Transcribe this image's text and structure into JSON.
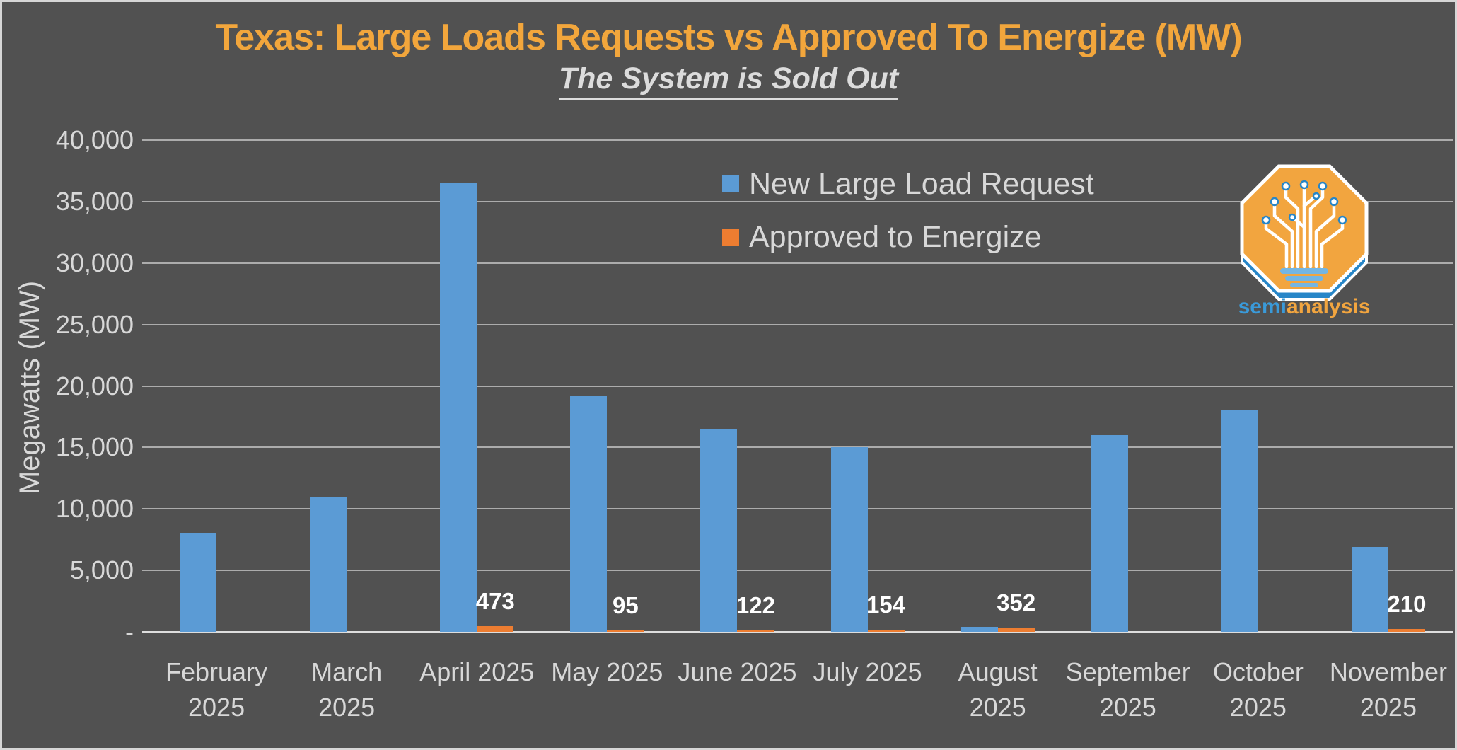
{
  "title": "Texas: Large Loads Requests vs Approved To Energize (MW)",
  "subtitle": "The System is Sold Out",
  "y_axis": {
    "title": "Megawatts (MW)",
    "tick_labels": [
      "40,000",
      "35,000",
      "30,000",
      "25,000",
      "20,000",
      "15,000",
      "10,000",
      "5,000",
      "-"
    ],
    "tick_values": [
      40000,
      35000,
      30000,
      25000,
      20000,
      15000,
      10000,
      5000,
      0
    ]
  },
  "legend": [
    {
      "label": "New Large Load Request",
      "color": "#5B9BD5"
    },
    {
      "label": "Approved to Energize",
      "color": "#ED7D31"
    }
  ],
  "colors": {
    "background": "#515151",
    "border": "#D6D6D6",
    "title": "#F2A63C",
    "text": "#D8D8D8",
    "gridline": "#D0D0D0",
    "blue_series": "#5B9BD5",
    "orange_series": "#ED7D31",
    "data_label": "#FFFFFF"
  },
  "logo": {
    "wordmark_semi": "semi",
    "wordmark_analysis": "analysis",
    "octagon_color": "#F2A53F",
    "shadow_color": "#2786C8",
    "base_bar_color": "#74B6E3"
  },
  "chart_data": {
    "type": "bar",
    "title": "Texas: Large Loads Requests vs Approved To Energize (MW)",
    "subtitle": "The System is Sold Out",
    "xlabel": "",
    "ylabel": "Megawatts (MW)",
    "ylim": [
      0,
      40000
    ],
    "gridline_step": 5000,
    "grid": "on",
    "legend_position": "upper-center-right",
    "categories": [
      "February 2025",
      "March 2025",
      "April 2025",
      "May 2025",
      "June 2025",
      "July 2025",
      "August 2025",
      "September 2025",
      "October 2025",
      "November 2025"
    ],
    "category_label_lines": [
      [
        "February",
        "2025"
      ],
      [
        "March",
        "2025"
      ],
      [
        "April 2025",
        ""
      ],
      [
        "May 2025",
        ""
      ],
      [
        "June 2025",
        ""
      ],
      [
        "July 2025",
        ""
      ],
      [
        "August",
        "2025"
      ],
      [
        "September",
        "2025"
      ],
      [
        "October",
        "2025"
      ],
      [
        "November",
        "2025"
      ]
    ],
    "series": [
      {
        "name": "New Large Load Request",
        "color": "#5B9BD5",
        "values": [
          8000,
          11000,
          36500,
          19200,
          16500,
          15000,
          400,
          16000,
          18000,
          6900
        ],
        "data_labels": [
          "",
          "",
          "",
          "",
          "",
          "",
          "",
          "",
          "",
          ""
        ]
      },
      {
        "name": "Approved to Energize",
        "color": "#ED7D31",
        "values": [
          0,
          0,
          473,
          95,
          122,
          154,
          352,
          0,
          0,
          210
        ],
        "data_labels": [
          "",
          "",
          "473",
          "95",
          "122",
          "154",
          "352",
          "",
          "",
          "210"
        ]
      }
    ]
  }
}
